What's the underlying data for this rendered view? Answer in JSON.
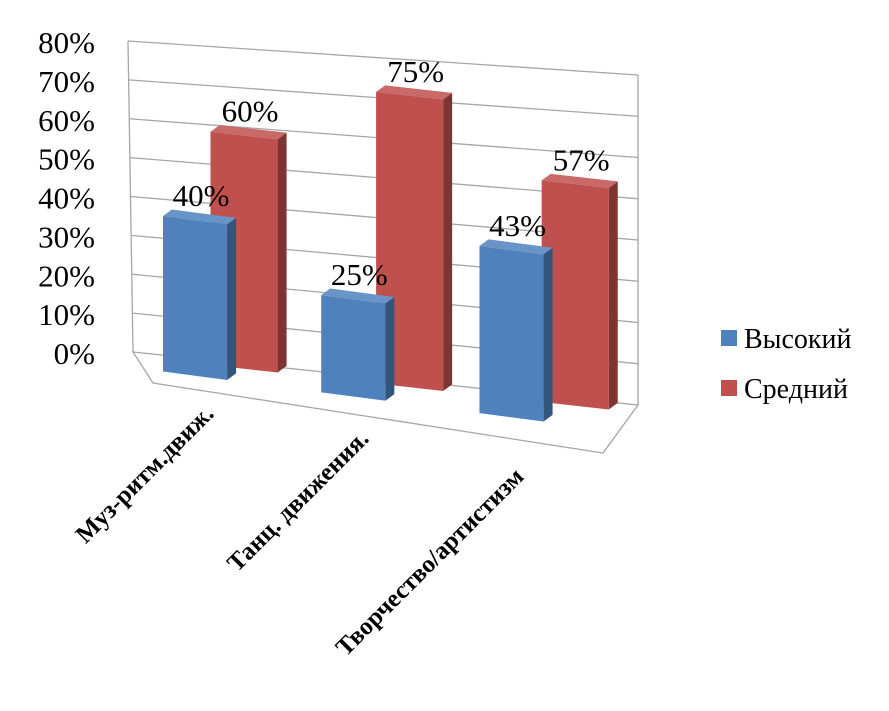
{
  "chart_data": {
    "type": "bar",
    "subtype": "3d-clustered-column",
    "categories": [
      "Муз-ритм.движ.",
      "Танц. движения.",
      "Творчество/артистизм"
    ],
    "series": [
      {
        "name": "Высокий",
        "values": [
          40,
          25,
          43
        ],
        "color": "#4f81bd",
        "data_labels": [
          "40%",
          "25%",
          "43%"
        ]
      },
      {
        "name": "Средний",
        "values": [
          60,
          75,
          57
        ],
        "color": "#c0504d",
        "data_labels": [
          "60%",
          "75%",
          "57%"
        ]
      }
    ],
    "y_ticks": [
      "0%",
      "10%",
      "20%",
      "30%",
      "40%",
      "50%",
      "60%",
      "70%",
      "80%"
    ],
    "ylim": [
      0,
      80
    ],
    "y_unit": "%",
    "grid": true,
    "legend_position": "right"
  },
  "legend": {
    "items": [
      {
        "label": "Высокий",
        "color": "#4f81bd"
      },
      {
        "label": "Средний",
        "color": "#c0504d"
      }
    ]
  }
}
